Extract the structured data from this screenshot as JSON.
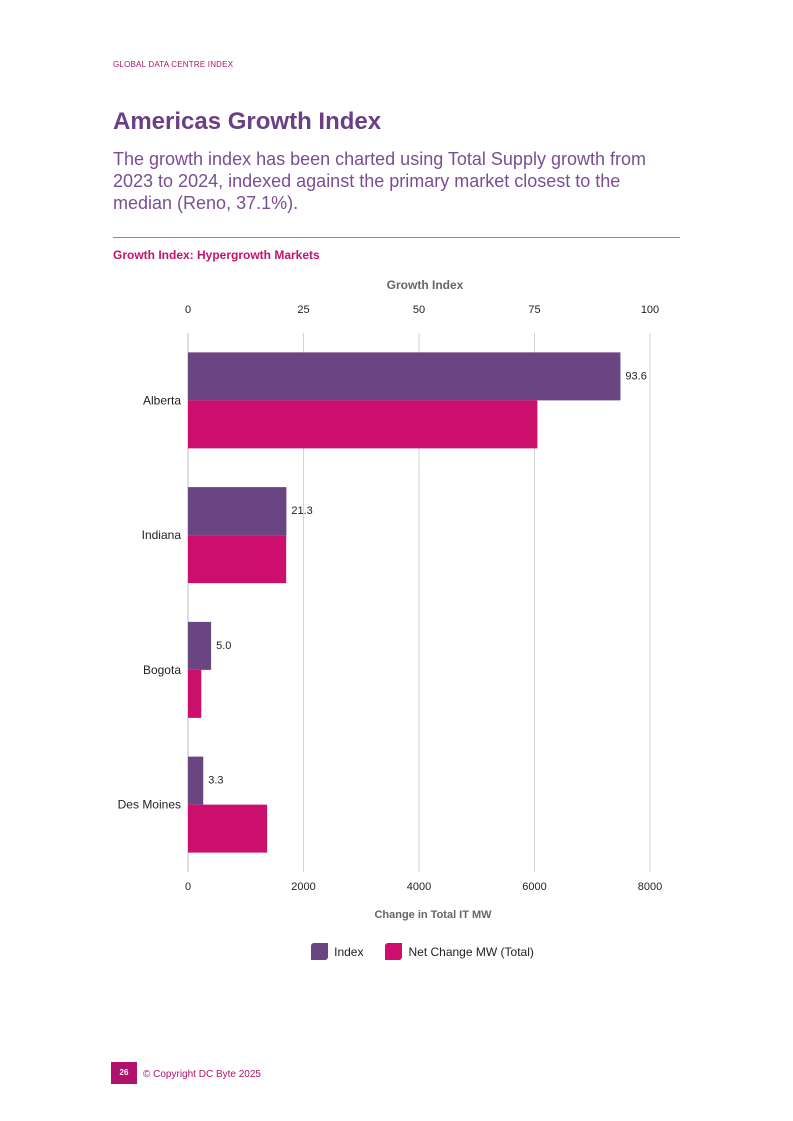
{
  "page": {
    "header_label": "GLOBAL DATA CENTRE INDEX",
    "title": "Americas Growth Index",
    "subtitle": "The growth index has been charted using Total Supply growth from 2023 to 2024, indexed against the primary market closest to the median (Reno, 37.1%).",
    "chart_heading": "Growth Index: Hypergrowth Markets",
    "page_number": "26",
    "copyright": "© Copyright DC Byte 2025"
  },
  "colors": {
    "index": "#6b4482",
    "net_change": "#cc0e6c",
    "grid": "#d3d3d3",
    "axis": "#bbbbbb"
  },
  "chart_data": {
    "type": "bar",
    "orientation": "horizontal",
    "categories": [
      "Alberta",
      "Indiana",
      "Bogota",
      "Des Moines"
    ],
    "series": [
      {
        "name": "Index",
        "axis": "top",
        "values": [
          93.6,
          21.3,
          5.0,
          3.3
        ],
        "labels": [
          "93.6",
          "21.3",
          "5.0",
          "3.3"
        ]
      },
      {
        "name": "Net Change MW (Total)",
        "axis": "bottom",
        "values": [
          6050,
          1700,
          230,
          1370
        ]
      }
    ],
    "top_axis": {
      "label": "Growth Index",
      "range": [
        0,
        100
      ],
      "ticks": [
        "0",
        "25",
        "50",
        "75",
        "100"
      ]
    },
    "bottom_axis": {
      "label": "Change in Total IT MW",
      "range": [
        0,
        8000
      ],
      "ticks": [
        "0",
        "2000",
        "4000",
        "6000",
        "8000"
      ]
    },
    "grid": true,
    "legend": "bottom-center"
  }
}
